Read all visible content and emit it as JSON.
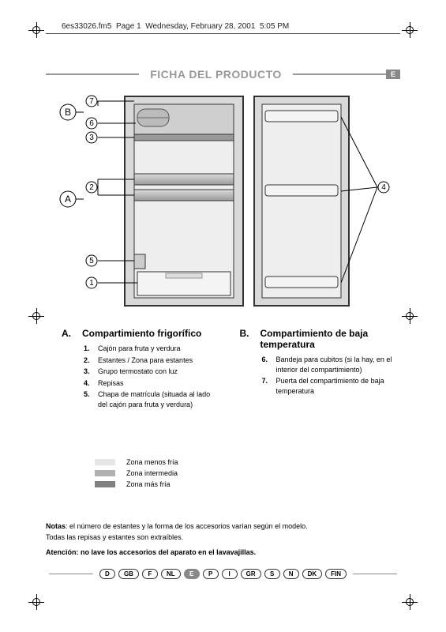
{
  "header": {
    "filename": "6es33026.fm5",
    "page": "Page 1",
    "date": "Wednesday, February 28, 2001",
    "time": "5:05 PM"
  },
  "title": "FICHA DEL PRODUCTO",
  "title_lang_badge": "E",
  "diagram": {
    "label_A": "A",
    "label_B": "B",
    "callouts": [
      "1",
      "2",
      "3",
      "4",
      "5",
      "6",
      "7"
    ],
    "colors": {
      "stroke": "#333333",
      "fill_body": "#d9d9d9",
      "fill_inner": "#eeeeee",
      "drawer_fill": "#f4f4f4",
      "shelf_gradient_top": "#dcdcdc",
      "shelf_gradient_bot": "#bcbcbc",
      "freezer_fill": "#cfcfcf"
    }
  },
  "section_A": {
    "letter": "A.",
    "title": "Compartimiento frigorífico",
    "items": [
      {
        "num": "1.",
        "text": "Cajón para fruta y verdura"
      },
      {
        "num": "2.",
        "text": "Estantes / Zona para estantes"
      },
      {
        "num": "3.",
        "text": "Grupo termostato con luz"
      },
      {
        "num": "4.",
        "text": "Repisas"
      },
      {
        "num": "5.",
        "text": "Chapa de matrícula (situada al lado del cajón para fruta y verdura)"
      }
    ]
  },
  "section_B": {
    "letter": "B.",
    "title": "Compartimiento de baja temperatura",
    "items": [
      {
        "num": "6.",
        "text": "Bandeja para cubitos (si la hay, en el interior del compartimiento)"
      },
      {
        "num": "7.",
        "text": "Puerta del compartimiento de baja temperatura"
      }
    ]
  },
  "legend": {
    "rows": [
      {
        "color": "#e6e6e6",
        "text": "Zona menos fría"
      },
      {
        "color": "#b0b0b0",
        "text": "Zona intermedia"
      },
      {
        "color": "#808080",
        "text": "Zona más fría"
      }
    ]
  },
  "notes": {
    "label": "Notas",
    "text1": ": el número de estantes y la forma de los accesorios varían según el modelo.",
    "text2": "Todas las repisas y estantes son extraíbles.",
    "attn_label": "Atención: no lave los accesorios del aparato en el lavavajillas."
  },
  "languages": [
    "D",
    "GB",
    "F",
    "NL",
    "E",
    "P",
    "I",
    "GR",
    "S",
    "N",
    "DK",
    "FIN"
  ],
  "active_lang": "E"
}
